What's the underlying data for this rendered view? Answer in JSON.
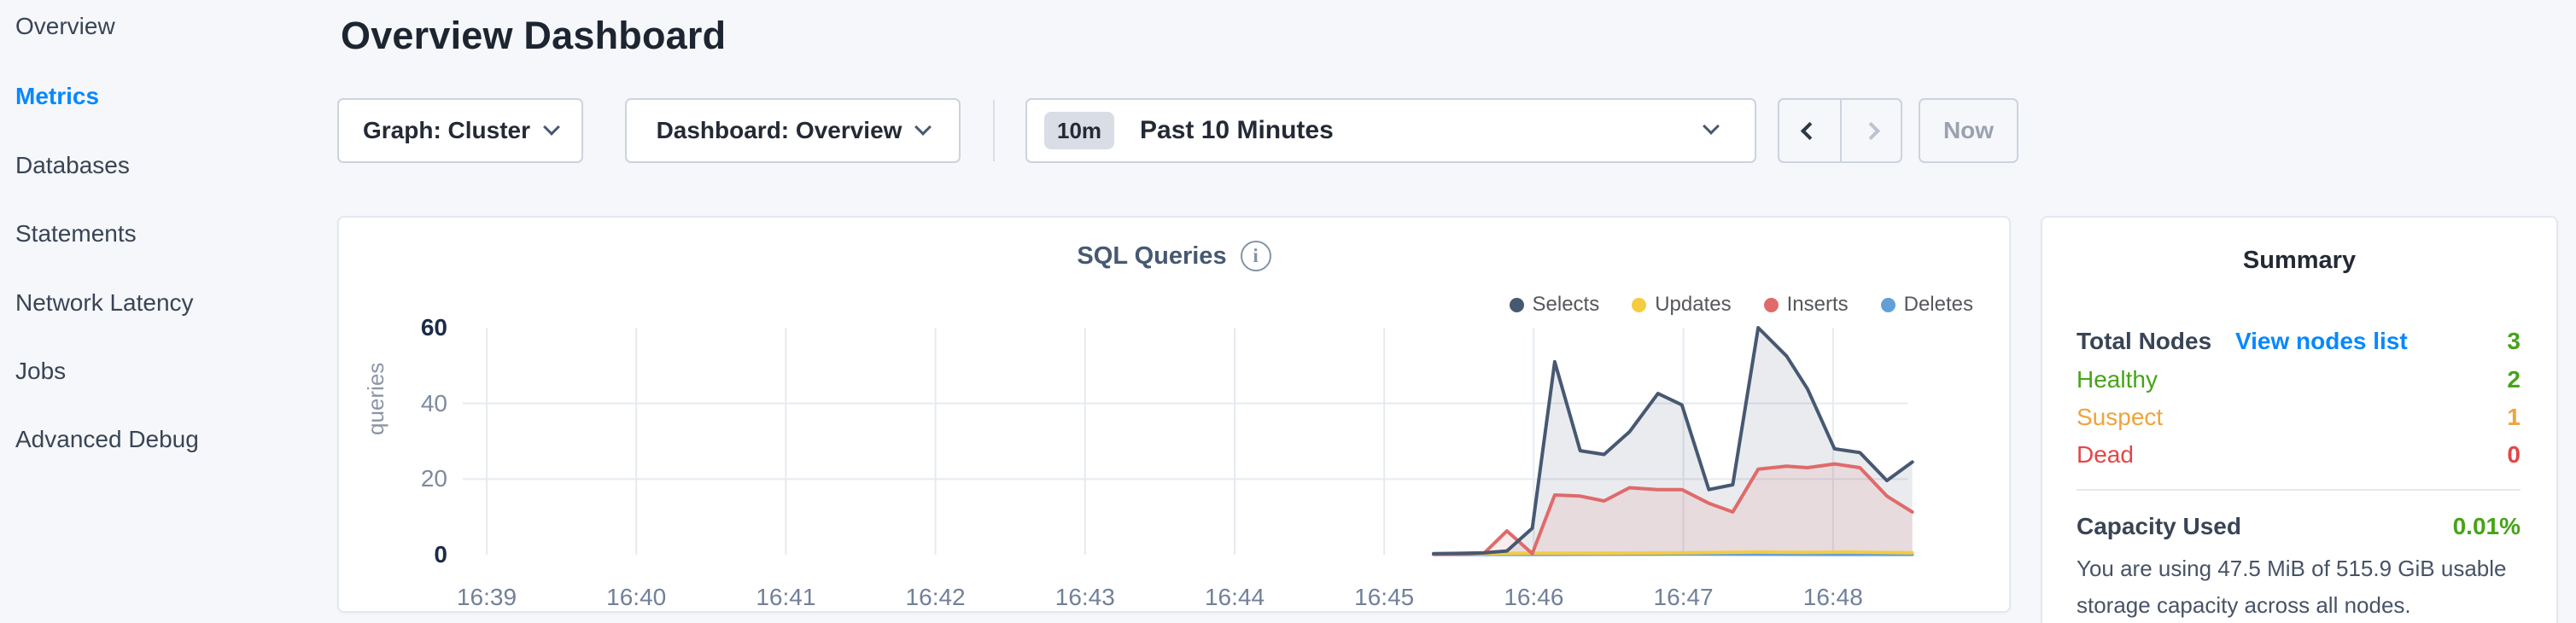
{
  "colors": {
    "accent_blue": "#0788ff",
    "green": "#46a417",
    "orange": "#f0a33c",
    "red": "#e54545",
    "page_bg": "#f5f7fa"
  },
  "sidebar": {
    "items": [
      {
        "label": "Overview",
        "active": false
      },
      {
        "label": "Metrics",
        "active": true
      },
      {
        "label": "Databases",
        "active": false
      },
      {
        "label": "Statements",
        "active": false
      },
      {
        "label": "Network Latency",
        "active": false
      },
      {
        "label": "Jobs",
        "active": false
      },
      {
        "label": "Advanced Debug",
        "active": false
      }
    ]
  },
  "header": {
    "title": "Overview Dashboard"
  },
  "controls": {
    "graph_dropdown": "Graph: Cluster",
    "dashboard_dropdown": "Dashboard: Overview",
    "time_badge": "10m",
    "time_label": "Past 10 Minutes",
    "now_label": "Now"
  },
  "chart_data": {
    "type": "area",
    "title": "SQL Queries",
    "ylabel": "queries",
    "ylim": [
      0,
      60
    ],
    "xlim_minutes_from_first_tick": [
      0,
      9.53
    ],
    "grid": true,
    "legend_position": "top-right",
    "x_ticks": [
      {
        "t": 0,
        "label": "16:39"
      },
      {
        "t": 1,
        "label": "16:40"
      },
      {
        "t": 2,
        "label": "16:41"
      },
      {
        "t": 3,
        "label": "16:42"
      },
      {
        "t": 4,
        "label": "16:43"
      },
      {
        "t": 5,
        "label": "16:44"
      },
      {
        "t": 6,
        "label": "16:45"
      },
      {
        "t": 7,
        "label": "16:46"
      },
      {
        "t": 8,
        "label": "16:47"
      },
      {
        "t": 9,
        "label": "16:48"
      }
    ],
    "y_ticks": [
      {
        "v": 0,
        "label": "0",
        "strong": true
      },
      {
        "v": 20,
        "label": "20",
        "strong": false
      },
      {
        "v": 40,
        "label": "40",
        "strong": false
      },
      {
        "v": 60,
        "label": "60",
        "strong": true
      }
    ],
    "series": [
      {
        "name": "Selects",
        "color": "#475872",
        "fill": "rgba(71,88,114,0.12)",
        "points": [
          [
            6.33,
            0.3
          ],
          [
            6.5,
            0.35
          ],
          [
            6.67,
            0.5
          ],
          [
            6.82,
            1
          ],
          [
            6.99,
            7
          ],
          [
            7.14,
            51
          ],
          [
            7.31,
            27.5
          ],
          [
            7.47,
            26.5
          ],
          [
            7.64,
            32.5
          ],
          [
            7.83,
            42.6
          ],
          [
            7.99,
            39.6
          ],
          [
            8.17,
            17.2
          ],
          [
            8.33,
            18.5
          ],
          [
            8.5,
            60
          ],
          [
            8.69,
            52.5
          ],
          [
            8.83,
            43.8
          ],
          [
            9.01,
            28
          ],
          [
            9.18,
            27
          ],
          [
            9.36,
            19.6
          ],
          [
            9.53,
            24.5
          ]
        ]
      },
      {
        "name": "Updates",
        "color": "#f5cb42",
        "fill": "none",
        "points": [
          [
            6.33,
            0.2
          ],
          [
            6.7,
            0.3
          ],
          [
            7.0,
            0.4
          ],
          [
            7.5,
            0.4
          ],
          [
            8.0,
            0.5
          ],
          [
            8.5,
            0.7
          ],
          [
            8.8,
            0.6
          ],
          [
            9.1,
            0.7
          ],
          [
            9.53,
            0.5
          ]
        ]
      },
      {
        "name": "Inserts",
        "color": "#e06a6a",
        "fill": "rgba(224,106,106,0.12)",
        "points": [
          [
            6.33,
            0.1
          ],
          [
            6.55,
            0.15
          ],
          [
            6.67,
            0.5
          ],
          [
            6.82,
            6.3
          ],
          [
            6.99,
            0.3
          ],
          [
            7.14,
            15.8
          ],
          [
            7.31,
            15.5
          ],
          [
            7.47,
            14.2
          ],
          [
            7.64,
            17.7
          ],
          [
            7.83,
            17.2
          ],
          [
            7.99,
            17.2
          ],
          [
            8.17,
            13.6
          ],
          [
            8.33,
            11.3
          ],
          [
            8.5,
            22.6
          ],
          [
            8.69,
            23.4
          ],
          [
            8.83,
            23
          ],
          [
            9.01,
            24
          ],
          [
            9.18,
            23
          ],
          [
            9.36,
            15.5
          ],
          [
            9.53,
            11.3
          ]
        ]
      },
      {
        "name": "Deletes",
        "color": "#61a0d6",
        "fill": "none",
        "points": [
          [
            6.33,
            0.1
          ],
          [
            7.0,
            0.1
          ],
          [
            8.0,
            0.15
          ],
          [
            9.0,
            0.1
          ],
          [
            9.53,
            0.1
          ]
        ]
      }
    ]
  },
  "summary": {
    "title": "Summary",
    "total_label": "Total Nodes",
    "view_link": "View nodes list",
    "total_value": "3",
    "total_color": "#46a417",
    "rows": [
      {
        "label": "Healthy",
        "value": "2",
        "color": "#46a417"
      },
      {
        "label": "Suspect",
        "value": "1",
        "color": "#f0a33c"
      },
      {
        "label": "Dead",
        "value": "0",
        "color": "#e54545"
      }
    ],
    "capacity_label": "Capacity Used",
    "capacity_value": "0.01%",
    "capacity_color": "#46a417",
    "capacity_note": "You are using 47.5 MiB of 515.9 GiB usable storage capacity across all nodes."
  }
}
